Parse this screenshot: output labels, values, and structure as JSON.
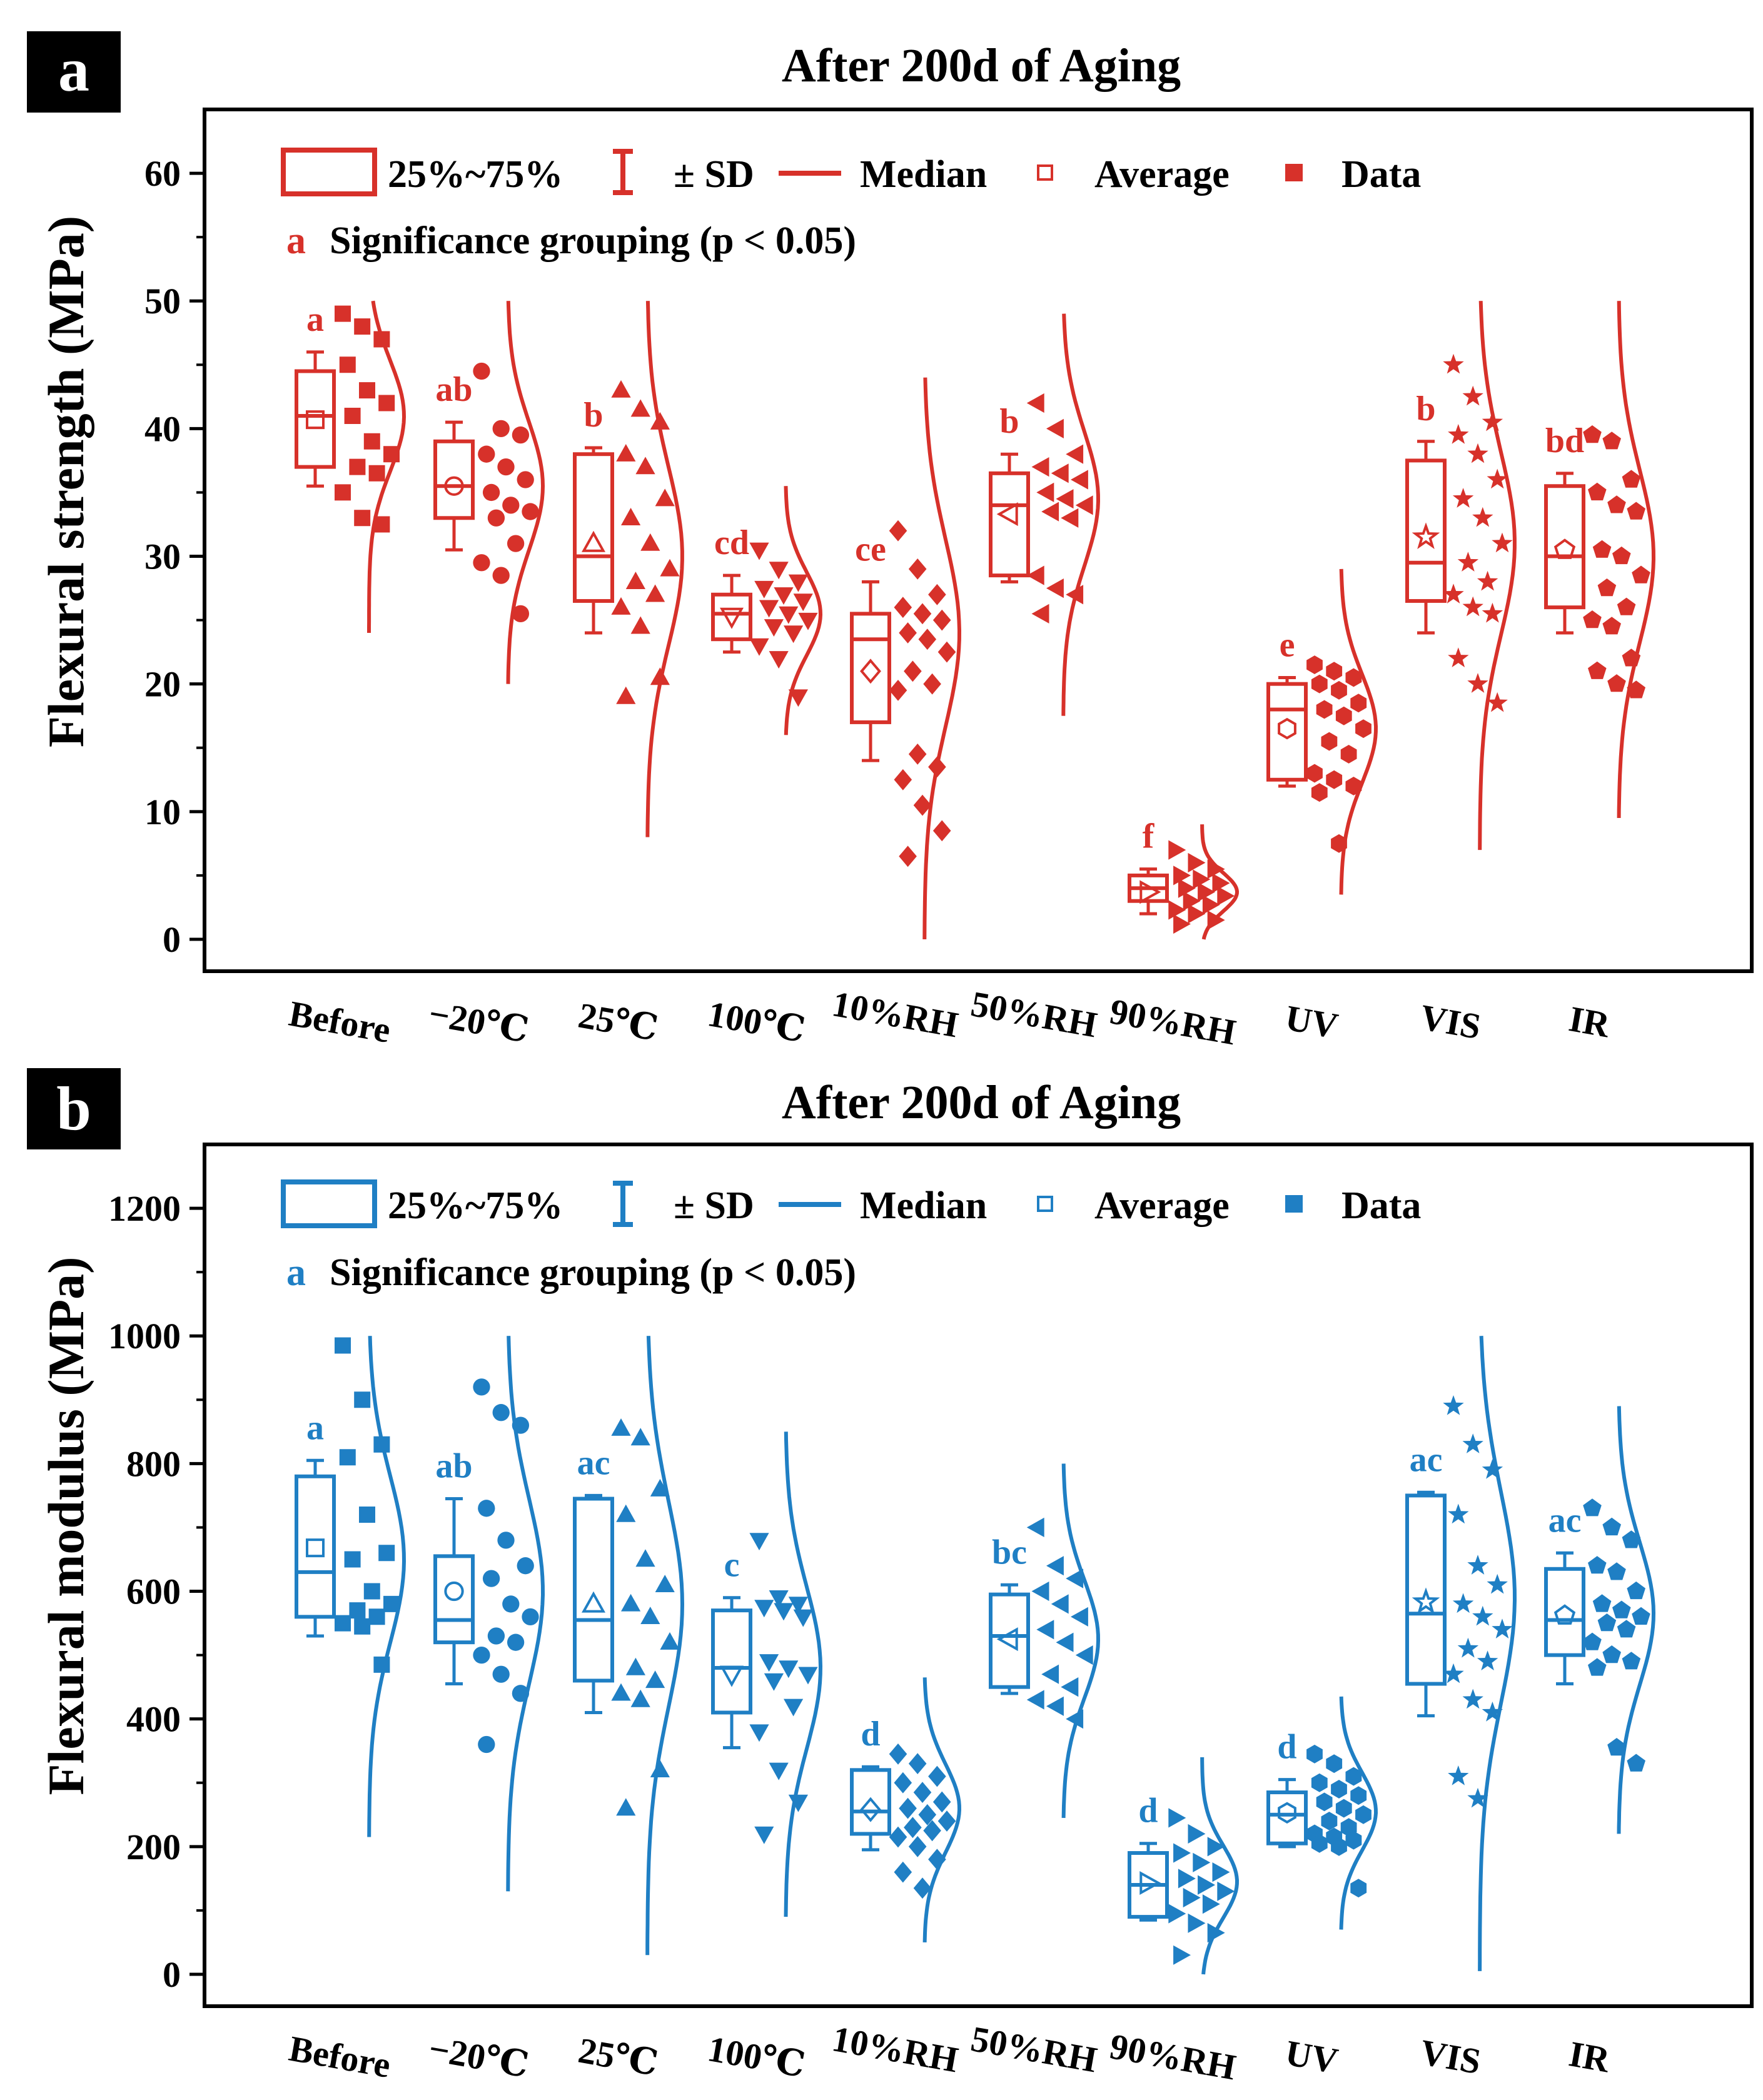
{
  "panels": [
    {
      "panel_label": "a",
      "title": "After 200d of Aging",
      "ylabel": "Flexural strength (MPa)",
      "color": "#d7312a",
      "ylim": [
        -2.5,
        65
      ],
      "y_ticks": [
        0,
        10,
        20,
        30,
        40,
        50,
        60
      ],
      "y_tick_labels": [
        "0",
        "10",
        "20",
        "30",
        "40",
        "50",
        "60"
      ],
      "legend": {
        "box_label": "25%~75%",
        "sd_label": "± SD",
        "median_label": "Median",
        "average_label": "Average",
        "data_label": "Data",
        "sig_letter": "a",
        "sig_label": "Significance grouping (p < 0.05)"
      }
    },
    {
      "panel_label": "b",
      "title": "After 200d of Aging",
      "ylabel": "Flexural modulus (MPa)",
      "color": "#1f7fc4",
      "ylim": [
        -50,
        1300
      ],
      "y_ticks": [
        0,
        200,
        400,
        600,
        800,
        1000,
        1200
      ],
      "y_tick_labels": [
        "0",
        "200",
        "400",
        "600",
        "800",
        "1000",
        "1200"
      ],
      "legend": {
        "box_label": "25%~75%",
        "sd_label": "± SD",
        "median_label": "Median",
        "average_label": "Average",
        "data_label": "Data",
        "sig_letter": "a",
        "sig_label": "Significance grouping (p < 0.05)"
      }
    }
  ],
  "chart_data": [
    {
      "type": "box",
      "title": "After 200d of Aging",
      "xlabel": "",
      "ylabel": "Flexural strength (MPa)",
      "ylim": [
        -2.5,
        65
      ],
      "categories": [
        "Before",
        "−20℃",
        "25℃",
        "100℃",
        "10%RH",
        "50%RH",
        "90%RH",
        "UV",
        "VIS",
        "IR"
      ],
      "markers": [
        "square",
        "circle",
        "triangle-up",
        "triangle-down",
        "diamond",
        "triangle-left",
        "triangle-right",
        "hexagon",
        "star",
        "pentagon"
      ],
      "groups": [
        {
          "category": "Before",
          "q1": 37,
          "median": 41,
          "q3": 44.5,
          "mean": 40.7,
          "sd_low": 35.5,
          "sd_high": 46,
          "sig": "a",
          "dist_range": [
            24,
            50
          ],
          "dist_mode": 41,
          "data": [
            49,
            48,
            47,
            45,
            43,
            42,
            41,
            39,
            38,
            37,
            36.5,
            35,
            33,
            32.5
          ]
        },
        {
          "category": "−20℃",
          "q1": 33,
          "median": 35.5,
          "q3": 39,
          "mean": 35.5,
          "sd_low": 30.5,
          "sd_high": 40.5,
          "sig": "ab",
          "dist_range": [
            20,
            50
          ],
          "dist_mode": 35.5,
          "data": [
            44.5,
            40,
            39.5,
            38,
            37,
            36,
            35,
            34,
            33.5,
            33,
            31,
            29.5,
            28.5,
            25.5
          ]
        },
        {
          "category": "25℃",
          "q1": 26.5,
          "median": 30,
          "q3": 38,
          "mean": 31,
          "sd_low": 24,
          "sd_high": 38.5,
          "sig": "b",
          "dist_range": [
            8,
            50
          ],
          "dist_mode": 30,
          "data": [
            43,
            41.5,
            40.5,
            38,
            37,
            34.5,
            33,
            31,
            29,
            28,
            27,
            26,
            24.5,
            20.5,
            19
          ]
        },
        {
          "category": "100℃",
          "q1": 23.5,
          "median": 25.5,
          "q3": 27,
          "mean": 25.3,
          "sd_low": 22.5,
          "sd_high": 28.5,
          "sig": "cd",
          "dist_range": [
            16,
            35.5
          ],
          "dist_mode": 25.5,
          "data": [
            30.5,
            29,
            28,
            27.5,
            27,
            26.5,
            26,
            25.5,
            25,
            24.5,
            24,
            23,
            22,
            19
          ]
        },
        {
          "category": "10%RH",
          "q1": 17,
          "median": 23.5,
          "q3": 25.5,
          "mean": 21,
          "sd_low": 14,
          "sd_high": 28,
          "sig": "ce",
          "dist_range": [
            0,
            44
          ],
          "dist_mode": 24,
          "data": [
            32,
            29,
            27,
            26,
            25.5,
            25,
            24,
            23.5,
            22.5,
            21,
            20,
            19.5,
            14.5,
            13.5,
            12.5,
            10.5,
            8.5,
            6.5
          ]
        },
        {
          "category": "50%RH",
          "q1": 28.5,
          "median": 34,
          "q3": 36.5,
          "mean": 33.3,
          "sd_low": 28,
          "sd_high": 38,
          "sig": "b",
          "dist_range": [
            17.5,
            49
          ],
          "dist_mode": 34.5,
          "data": [
            42,
            40,
            38,
            37,
            36.5,
            36,
            35,
            34.5,
            34,
            33.5,
            33,
            28.5,
            27.5,
            27,
            25.5
          ]
        },
        {
          "category": "90%RH",
          "q1": 3,
          "median": 4,
          "q3": 5,
          "mean": 3.7,
          "sd_low": 2,
          "sd_high": 5.5,
          "sig": "f",
          "dist_range": [
            0,
            9
          ],
          "dist_mode": 3.7,
          "data": [
            7,
            6,
            5.5,
            5,
            4.7,
            4.4,
            4,
            3.7,
            3.4,
            3,
            2.7,
            2.3,
            2,
            1.5,
            1.2
          ]
        },
        {
          "category": "UV",
          "q1": 12.5,
          "median": 18,
          "q3": 20,
          "mean": 16.5,
          "sd_low": 12,
          "sd_high": 20.5,
          "sig": "e",
          "dist_range": [
            3.5,
            29
          ],
          "dist_mode": 16.5,
          "data": [
            21.5,
            21,
            20.5,
            20,
            19.5,
            18.5,
            18,
            17.5,
            16.5,
            15.5,
            14.5,
            13,
            12.5,
            12,
            11.5,
            7.5
          ]
        },
        {
          "category": "VIS",
          "q1": 26.5,
          "median": 29.5,
          "q3": 37.5,
          "mean": 31.5,
          "sd_low": 24,
          "sd_high": 39,
          "sig": "b",
          "dist_range": [
            7,
            50
          ],
          "dist_mode": 31,
          "data": [
            45,
            42.5,
            40.5,
            39.5,
            38,
            36,
            34.5,
            33,
            31,
            29.5,
            28,
            27,
            26,
            25.5,
            22,
            20,
            18.5
          ]
        },
        {
          "category": "IR",
          "q1": 26,
          "median": 30,
          "q3": 35.5,
          "mean": 30.5,
          "sd_low": 24,
          "sd_high": 36.5,
          "sig": "bd",
          "dist_range": [
            9.5,
            50
          ],
          "dist_mode": 30,
          "data": [
            39.5,
            39,
            36,
            35,
            34,
            33.5,
            30.5,
            30,
            28.5,
            27.5,
            26,
            25,
            24.5,
            22,
            21,
            20,
            19.5
          ]
        }
      ]
    },
    {
      "type": "box",
      "title": "After 200d of Aging",
      "xlabel": "",
      "ylabel": "Flexural modulus (MPa)",
      "ylim": [
        -50,
        1300
      ],
      "categories": [
        "Before",
        "−20℃",
        "25℃",
        "100℃",
        "10%RH",
        "50%RH",
        "90%RH",
        "UV",
        "VIS",
        "IR"
      ],
      "markers": [
        "square",
        "circle",
        "triangle-up",
        "triangle-down",
        "diamond",
        "triangle-left",
        "triangle-right",
        "hexagon",
        "star",
        "pentagon"
      ],
      "groups": [
        {
          "category": "Before",
          "q1": 560,
          "median": 630,
          "q3": 780,
          "mean": 668,
          "sd_low": 530,
          "sd_high": 805,
          "sig": "a",
          "dist_range": [
            215,
            1000
          ],
          "dist_mode": 650,
          "data": [
            985,
            900,
            830,
            810,
            720,
            660,
            650,
            600,
            580,
            570,
            560,
            550,
            545,
            485
          ]
        },
        {
          "category": "−20℃",
          "q1": 520,
          "median": 555,
          "q3": 655,
          "mean": 600,
          "sd_low": 455,
          "sd_high": 745,
          "sig": "ab",
          "dist_range": [
            130,
            1000
          ],
          "dist_mode": 600,
          "data": [
            920,
            880,
            860,
            730,
            680,
            640,
            620,
            580,
            560,
            530,
            520,
            500,
            470,
            440,
            360
          ]
        },
        {
          "category": "25℃",
          "q1": 460,
          "median": 555,
          "q3": 745,
          "mean": 580,
          "sd_low": 410,
          "sd_high": 750,
          "sig": "ac",
          "dist_range": [
            30,
            1000
          ],
          "dist_mode": 580,
          "data": [
            855,
            840,
            760,
            720,
            650,
            610,
            580,
            560,
            520,
            480,
            460,
            440,
            430,
            320,
            260
          ]
        },
        {
          "category": "100℃",
          "q1": 410,
          "median": 480,
          "q3": 570,
          "mean": 470,
          "sd_low": 355,
          "sd_high": 590,
          "sig": "c",
          "dist_range": [
            90,
            850
          ],
          "dist_mode": 480,
          "data": [
            680,
            590,
            580,
            575,
            570,
            560,
            490,
            480,
            470,
            460,
            420,
            380,
            320,
            270,
            220
          ]
        },
        {
          "category": "10%RH",
          "q1": 220,
          "median": 255,
          "q3": 320,
          "mean": 258,
          "sd_low": 195,
          "sd_high": 325,
          "sig": "d",
          "dist_range": [
            50,
            465
          ],
          "dist_mode": 260,
          "data": [
            345,
            330,
            310,
            300,
            285,
            270,
            260,
            250,
            240,
            230,
            225,
            215,
            200,
            180,
            160,
            135
          ]
        },
        {
          "category": "50%RH",
          "q1": 450,
          "median": 530,
          "q3": 595,
          "mean": 525,
          "sd_low": 440,
          "sd_high": 610,
          "sig": "bc",
          "dist_range": [
            245,
            800
          ],
          "dist_mode": 525,
          "data": [
            700,
            640,
            620,
            600,
            580,
            560,
            540,
            520,
            500,
            470,
            450,
            430,
            420,
            400
          ]
        },
        {
          "category": "90%RH",
          "q1": 90,
          "median": 140,
          "q3": 190,
          "mean": 143,
          "sd_low": 85,
          "sd_high": 205,
          "sig": "d",
          "dist_range": [
            0,
            340
          ],
          "dist_mode": 145,
          "data": [
            245,
            220,
            200,
            190,
            175,
            160,
            150,
            140,
            130,
            120,
            110,
            95,
            80,
            65,
            30
          ]
        },
        {
          "category": "UV",
          "q1": 205,
          "median": 250,
          "q3": 285,
          "mean": 253,
          "sd_low": 200,
          "sd_high": 305,
          "sig": "d",
          "dist_range": [
            70,
            435
          ],
          "dist_mode": 255,
          "data": [
            345,
            330,
            310,
            300,
            290,
            280,
            270,
            260,
            250,
            240,
            230,
            220,
            215,
            210,
            205,
            200,
            135
          ]
        },
        {
          "category": "VIS",
          "q1": 455,
          "median": 565,
          "q3": 750,
          "mean": 583,
          "sd_low": 405,
          "sd_high": 755,
          "sig": "ac",
          "dist_range": [
            5,
            1000
          ],
          "dist_mode": 590,
          "data": [
            890,
            830,
            790,
            720,
            640,
            610,
            580,
            560,
            540,
            510,
            490,
            470,
            430,
            410,
            310,
            275
          ]
        },
        {
          "category": "IR",
          "q1": 500,
          "median": 555,
          "q3": 635,
          "mean": 562,
          "sd_low": 455,
          "sd_high": 660,
          "sig": "ac",
          "dist_range": [
            220,
            890
          ],
          "dist_mode": 565,
          "data": [
            730,
            700,
            680,
            640,
            630,
            600,
            580,
            570,
            560,
            550,
            540,
            520,
            500,
            490,
            480,
            355,
            330
          ]
        }
      ]
    }
  ]
}
